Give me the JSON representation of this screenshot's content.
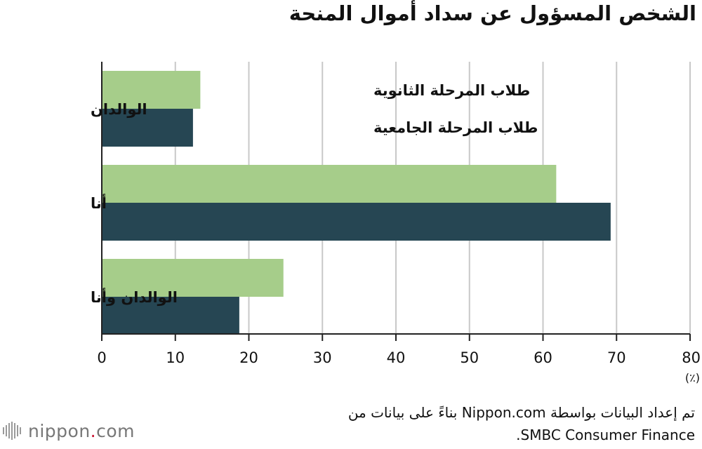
{
  "title": "الشخص المسؤول عن سداد أموال المنحة",
  "source_line1": "تم إعداد البيانات بواسطة Nippon.com بناءً على بيانات من",
  "source_line2": "SMBC Consumer Finance.",
  "logo": {
    "name": "nippon",
    "dot": ".",
    "suffix": "com"
  },
  "colors": {
    "highschool": "#a6cd8a",
    "university": "#264653",
    "grid": "#c8c8c8",
    "axis": "#222222",
    "text": "#111111"
  },
  "chart_data": {
    "type": "bar",
    "orientation": "horizontal",
    "categories": [
      "الوالدان",
      "أنا",
      "الوالدان وأنا"
    ],
    "series": [
      {
        "name": "طلاب المرحلة الثانوية",
        "values": [
          13.4,
          61.8,
          24.7
        ]
      },
      {
        "name": "طلاب المرحلة الجامعية",
        "values": [
          12.4,
          69.2,
          18.7
        ]
      }
    ],
    "xlim": [
      0,
      80
    ],
    "xticks": [
      0,
      10,
      20,
      30,
      40,
      50,
      60,
      70,
      80
    ],
    "unit": "(٪)",
    "grid": true,
    "legend": "inside-top"
  }
}
